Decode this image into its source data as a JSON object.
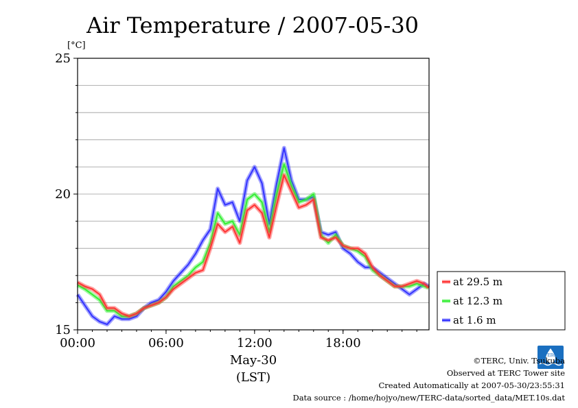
{
  "chart_data": {
    "type": "line",
    "title": "Air Temperature / 2007-05-30",
    "ylabel": "[°C]",
    "ylim": [
      15,
      25
    ],
    "xlim_hours": [
      0,
      23.83
    ],
    "y_ticks": [
      {
        "value": 15,
        "label": "15"
      },
      {
        "value": 20,
        "label": "20"
      },
      {
        "value": 25,
        "label": "25"
      }
    ],
    "y_gridlines": [
      16,
      17,
      18,
      19,
      20,
      21,
      22,
      23,
      24
    ],
    "x_ticks": [
      {
        "hour": 0,
        "label": "00:00"
      },
      {
        "hour": 6,
        "label": "06:00"
      },
      {
        "hour": 12,
        "label": "12:00"
      },
      {
        "hour": 18,
        "label": "18:00"
      }
    ],
    "x_date_label": "May-30",
    "x_tz_label": "(LST)",
    "grid": "horizontal",
    "legend_position": "bottom-right outside",
    "series": [
      {
        "name": "at 29.5 m",
        "color": "#ff3333",
        "x": [
          0,
          0.5,
          1,
          1.5,
          2,
          2.5,
          3,
          3.5,
          4,
          4.5,
          5,
          5.5,
          6,
          6.5,
          7,
          7.5,
          8,
          8.5,
          9,
          9.5,
          10,
          10.5,
          11,
          11.5,
          12,
          12.5,
          13,
          13.5,
          14,
          14.5,
          15,
          15.5,
          16,
          16.5,
          17,
          17.5,
          18,
          18.5,
          19,
          19.5,
          20,
          20.5,
          21,
          21.5,
          22,
          22.5,
          23,
          23.5,
          23.8
        ],
        "values": [
          16.75,
          16.6,
          16.5,
          16.3,
          15.8,
          15.8,
          15.6,
          15.5,
          15.6,
          15.8,
          15.9,
          16.0,
          16.2,
          16.5,
          16.7,
          16.9,
          17.1,
          17.2,
          18.0,
          18.9,
          18.6,
          18.8,
          18.2,
          19.4,
          19.6,
          19.3,
          18.4,
          19.6,
          20.7,
          20.1,
          19.5,
          19.6,
          19.8,
          18.4,
          18.3,
          18.4,
          18.1,
          18.0,
          18.0,
          17.8,
          17.3,
          17.0,
          16.8,
          16.6,
          16.6,
          16.7,
          16.8,
          16.7,
          16.55
        ]
      },
      {
        "name": "at 12.3 m",
        "color": "#33ee33",
        "x": [
          0,
          0.5,
          1,
          1.5,
          2,
          2.5,
          3,
          3.5,
          4,
          4.5,
          5,
          5.5,
          6,
          6.5,
          7,
          7.5,
          8,
          8.5,
          9,
          9.5,
          10,
          10.5,
          11,
          11.5,
          12,
          12.5,
          13,
          13.5,
          14,
          14.5,
          15,
          15.5,
          16,
          16.5,
          17,
          17.5,
          18,
          18.5,
          19,
          19.5,
          20,
          20.5,
          21,
          21.5,
          22,
          22.5,
          23,
          23.5,
          23.8
        ],
        "values": [
          16.65,
          16.5,
          16.3,
          16.1,
          15.7,
          15.7,
          15.5,
          15.5,
          15.6,
          15.8,
          15.9,
          16.0,
          16.2,
          16.6,
          16.8,
          17.0,
          17.3,
          17.5,
          18.2,
          19.3,
          18.9,
          19.0,
          18.5,
          19.8,
          20.0,
          19.7,
          18.6,
          20.0,
          21.1,
          20.3,
          19.7,
          19.8,
          20.0,
          18.5,
          18.2,
          18.5,
          18.1,
          18.0,
          17.9,
          17.7,
          17.2,
          17.0,
          16.8,
          16.6,
          16.6,
          16.6,
          16.7,
          16.6,
          16.55
        ]
      },
      {
        "name": "at 1.6 m",
        "color": "#3333ff",
        "x": [
          0,
          0.5,
          1,
          1.5,
          2,
          2.5,
          3,
          3.5,
          4,
          4.5,
          5,
          5.5,
          6,
          6.5,
          7,
          7.5,
          8,
          8.5,
          9,
          9.5,
          10,
          10.5,
          11,
          11.5,
          12,
          12.5,
          13,
          13.5,
          14,
          14.5,
          15,
          15.5,
          16,
          16.5,
          17,
          17.5,
          18,
          18.5,
          19,
          19.5,
          20,
          20.5,
          21,
          21.5,
          22,
          22.5,
          23,
          23.5,
          23.8
        ],
        "values": [
          16.3,
          15.9,
          15.5,
          15.3,
          15.2,
          15.5,
          15.4,
          15.4,
          15.5,
          15.8,
          16.0,
          16.1,
          16.4,
          16.8,
          17.1,
          17.4,
          17.8,
          18.3,
          18.7,
          20.2,
          19.6,
          19.7,
          19.0,
          20.5,
          21.0,
          20.4,
          18.9,
          20.4,
          21.7,
          20.5,
          19.8,
          19.8,
          19.9,
          18.6,
          18.5,
          18.6,
          18.0,
          17.8,
          17.5,
          17.3,
          17.3,
          17.1,
          16.9,
          16.7,
          16.5,
          16.3,
          16.5,
          16.7,
          16.6
        ]
      }
    ]
  },
  "credits": {
    "copyright": "©TERC, Univ. Tsukuba",
    "observed": "Observed at TERC Tower site",
    "created": "Created Automatically at 2007-05-30/23:55:31",
    "source": "Data source : /home/hojyo/new/TERC-data/sorted_data/MET.10s.dat",
    "logo_text": "TERC"
  }
}
